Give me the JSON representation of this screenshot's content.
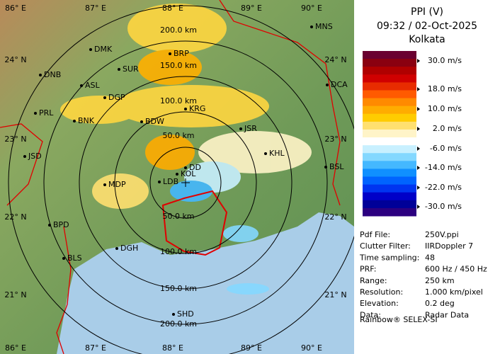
{
  "map": {
    "lon_labels": [
      "86° E",
      "87° E",
      "88° E",
      "89° E",
      "90° E"
    ],
    "lat_labels": [
      "24° N",
      "23° N",
      "22° N",
      "21° N"
    ],
    "range_labels": [
      "50.0 km",
      "100.0 km",
      "150.0 km",
      "200.0 km"
    ],
    "cities": [
      "MNS",
      "DMK",
      "BRP",
      "DNB",
      "SUR",
      "ASL",
      "DCA",
      "DGP",
      "PRL",
      "BNK",
      "KRG",
      "BDW",
      "JSR",
      "JSD",
      "KHL",
      "DD",
      "BSL",
      "MDP",
      "KOL",
      "LDB",
      "BPD",
      "DGH",
      "BLS",
      "SHD"
    ]
  },
  "panel": {
    "title": "PPI (V)",
    "time": "09:32 / 02-Oct-2025",
    "site": "Kolkata",
    "scale": {
      "colors": [
        "#6a0030",
        "#8a0010",
        "#b00000",
        "#d00000",
        "#e82c00",
        "#ff5a00",
        "#ff8a00",
        "#ffac00",
        "#ffcc00",
        "#ffe070",
        "#fff4c8",
        "#ffffff",
        "#c8f0ff",
        "#84d8ff",
        "#44b8ff",
        "#1090ff",
        "#0064ff",
        "#0034f0",
        "#0000c8",
        "#000098",
        "#2c0080"
      ],
      "labels": [
        "30.0 m/s",
        "18.0 m/s",
        "10.0 m/s",
        "2.0 m/s",
        "-6.0 m/s",
        "-14.0 m/s",
        "-22.0 m/s",
        "-30.0 m/s"
      ]
    },
    "info": [
      [
        "Pdf File:",
        "250V.ppi"
      ],
      [
        "Clutter Filter:",
        "IIRDoppler 7"
      ],
      [
        "Time sampling:",
        "48"
      ],
      [
        "PRF:",
        "600 Hz / 450 Hz"
      ],
      [
        "Range:",
        "250 km"
      ],
      [
        "Resolution:",
        "1.000 km/pixel"
      ],
      [
        "Elevation:",
        "0.2 deg"
      ],
      [
        "Data:",
        "Radar Data"
      ]
    ],
    "footer": "Rainbow® SELEX-SI"
  }
}
